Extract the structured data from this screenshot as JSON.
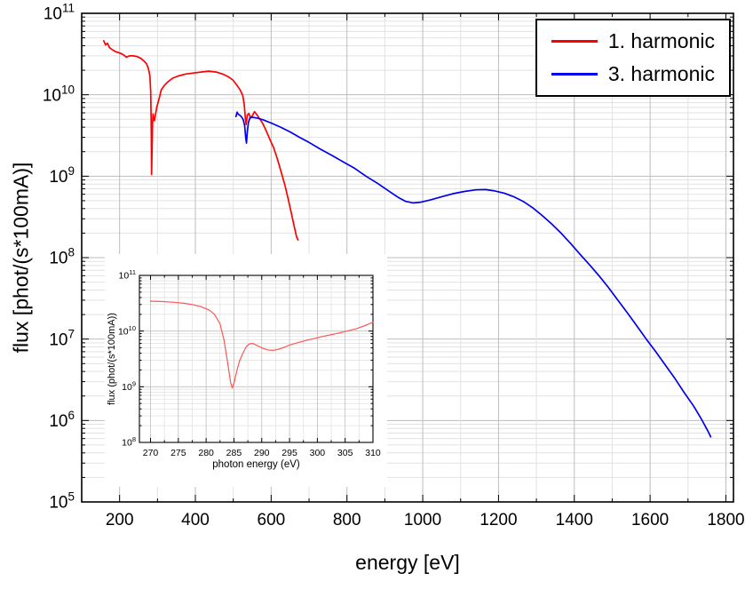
{
  "figure": {
    "background": "#ffffff"
  },
  "colors": {
    "harmonic1": "#ff0000",
    "harmonic3": "#0000ee",
    "inset_line": "#ff5555",
    "grid_major": "#bdbdbd",
    "grid_minor": "#e2e2e2",
    "axis": "#000000"
  },
  "legend": {
    "items": [
      {
        "label": "1. harmonic",
        "color_key": "harmonic1"
      },
      {
        "label": "3. harmonic",
        "color_key": "harmonic3"
      }
    ]
  },
  "chart_data": [
    {
      "id": "main",
      "type": "line",
      "title": "",
      "xlabel": "energy [eV]",
      "ylabel": "flux [phot/(s*100mA)]",
      "x_scale": "linear",
      "y_scale": "log",
      "xlim": [
        100,
        1820
      ],
      "ylim": [
        100000.0,
        100000000000.0
      ],
      "y_exp_range": [
        5,
        11
      ],
      "x_major_ticks": [
        200,
        400,
        600,
        800,
        1000,
        1200,
        1400,
        1600,
        1800
      ],
      "x_minor_step": 100,
      "grid": true,
      "legend_position": "top-right",
      "series": [
        {
          "name": "1. harmonic",
          "color": "#ff0000",
          "points": [
            [
              158,
              46000000000.0
            ],
            [
              163,
              41000000000.0
            ],
            [
              168,
              43000000000.0
            ],
            [
              173,
              38000000000.0
            ],
            [
              180,
              36000000000.0
            ],
            [
              188,
              34000000000.0
            ],
            [
              196,
              33000000000.0
            ],
            [
              205,
              32000000000.0
            ],
            [
              212,
              30500000000.0
            ],
            [
              218,
              29000000000.0
            ],
            [
              226,
              30000000000.0
            ],
            [
              236,
              30000000000.0
            ],
            [
              246,
              29500000000.0
            ],
            [
              256,
              28000000000.0
            ],
            [
              264,
              26000000000.0
            ],
            [
              271,
              24000000000.0
            ],
            [
              276,
              21000000000.0
            ],
            [
              280,
              17000000000.0
            ],
            [
              282,
              11000000000.0
            ],
            [
              283.5,
              4000000000.0
            ],
            [
              284.5,
              1050000000.0
            ],
            [
              285.5,
              2000000000.0
            ],
            [
              287,
              4500000000.0
            ],
            [
              288.5,
              5800000000.0
            ],
            [
              290,
              5000000000.0
            ],
            [
              292,
              4800000000.0
            ],
            [
              295,
              5800000000.0
            ],
            [
              298,
              7000000000.0
            ],
            [
              302,
              8200000000.0
            ],
            [
              306,
              9600000000.0
            ],
            [
              310,
              11500000000.0
            ],
            [
              318,
              13000000000.0
            ],
            [
              328,
              14500000000.0
            ],
            [
              340,
              16000000000.0
            ],
            [
              355,
              17000000000.0
            ],
            [
              375,
              18000000000.0
            ],
            [
              395,
              18500000000.0
            ],
            [
              415,
              19000000000.0
            ],
            [
              435,
              19500000000.0
            ],
            [
              455,
              19000000000.0
            ],
            [
              472,
              18000000000.0
            ],
            [
              488,
              16500000000.0
            ],
            [
              500,
              15000000000.0
            ],
            [
              510,
              13000000000.0
            ],
            [
              518,
              11500000000.0
            ],
            [
              525,
              9800000000.0
            ],
            [
              529,
              7500000000.0
            ],
            [
              532,
              5000000000.0
            ],
            [
              534,
              4300000000.0
            ],
            [
              537,
              5600000000.0
            ],
            [
              541,
              5900000000.0
            ],
            [
              546,
              5200000000.0
            ],
            [
              551,
              5600000000.0
            ],
            [
              556,
              6200000000.0
            ],
            [
              561,
              5800000000.0
            ],
            [
              568,
              5200000000.0
            ],
            [
              577,
              4500000000.0
            ],
            [
              587,
              3600000000.0
            ],
            [
              597,
              2800000000.0
            ],
            [
              607,
              2200000000.0
            ],
            [
              617,
              1600000000.0
            ],
            [
              627,
              1100000000.0
            ],
            [
              637,
              750000000.0
            ],
            [
              646,
              500000000.0
            ],
            [
              654,
              340000000.0
            ],
            [
              661,
              240000000.0
            ],
            [
              667,
              180000000.0
            ],
            [
              671,
              165000000.0
            ]
          ]
        },
        {
          "name": "3. harmonic",
          "color": "#0000ee",
          "points": [
            [
              507,
              5400000000.0
            ],
            [
              510,
              6100000000.0
            ],
            [
              513,
              5800000000.0
            ],
            [
              517,
              5600000000.0
            ],
            [
              521,
              5400000000.0
            ],
            [
              526,
              5000000000.0
            ],
            [
              530,
              4200000000.0
            ],
            [
              533,
              2900000000.0
            ],
            [
              535,
              2550000000.0
            ],
            [
              537,
              3500000000.0
            ],
            [
              540,
              4600000000.0
            ],
            [
              544,
              5200000000.0
            ],
            [
              549,
              5300000000.0
            ],
            [
              555,
              5250000000.0
            ],
            [
              565,
              5150000000.0
            ],
            [
              580,
              4900000000.0
            ],
            [
              600,
              4500000000.0
            ],
            [
              625,
              4000000000.0
            ],
            [
              650,
              3500000000.0
            ],
            [
              675,
              3000000000.0
            ],
            [
              700,
              2600000000.0
            ],
            [
              730,
              2150000000.0
            ],
            [
              760,
              1800000000.0
            ],
            [
              790,
              1500000000.0
            ],
            [
              820,
              1250000000.0
            ],
            [
              850,
              1000000000.0
            ],
            [
              880,
              820000000.0
            ],
            [
              910,
              660000000.0
            ],
            [
              935,
              550000000.0
            ],
            [
              955,
              490000000.0
            ],
            [
              975,
              470000000.0
            ],
            [
              995,
              480000000.0
            ],
            [
              1020,
              510000000.0
            ],
            [
              1050,
              560000000.0
            ],
            [
              1080,
              610000000.0
            ],
            [
              1110,
              650000000.0
            ],
            [
              1140,
              680000000.0
            ],
            [
              1165,
              685000000.0
            ],
            [
              1190,
              660000000.0
            ],
            [
              1215,
              620000000.0
            ],
            [
              1240,
              560000000.0
            ],
            [
              1265,
              490000000.0
            ],
            [
              1290,
              410000000.0
            ],
            [
              1315,
              330000000.0
            ],
            [
              1340,
              260000000.0
            ],
            [
              1365,
              200000000.0
            ],
            [
              1390,
              150000000.0
            ],
            [
              1415,
              110000000.0
            ],
            [
              1440,
              82000000.0
            ],
            [
              1465,
              60000000.0
            ],
            [
              1490,
              43000000.0
            ],
            [
              1515,
              30000000.0
            ],
            [
              1540,
              21000000.0
            ],
            [
              1565,
              14500000.0
            ],
            [
              1590,
              10000000.0
            ],
            [
              1615,
              7000000.0
            ],
            [
              1640,
              4800000.0
            ],
            [
              1665,
              3300000.0
            ],
            [
              1690,
              2200000.0
            ],
            [
              1715,
              1500000.0
            ],
            [
              1735,
              1050000.0
            ],
            [
              1752,
              750000.0
            ],
            [
              1760,
              630000.0
            ]
          ]
        }
      ]
    },
    {
      "id": "inset",
      "type": "line",
      "title": "",
      "xlabel": "photon energy (eV)",
      "ylabel": "flux (phot/(s*100mA))",
      "x_scale": "linear",
      "y_scale": "log",
      "xlim": [
        268,
        310
      ],
      "ylim": [
        100000000.0,
        100000000000.0
      ],
      "y_exp_range": [
        8,
        11
      ],
      "x_major_ticks": [
        270,
        275,
        280,
        285,
        290,
        295,
        300,
        305,
        310
      ],
      "x_minor_step": 2.5,
      "grid": true,
      "series": [
        {
          "color": "#ff5555",
          "points": [
            [
              270,
              34500000000.0
            ],
            [
              272,
              34000000000.0
            ],
            [
              274,
              33000000000.0
            ],
            [
              276,
              31500000000.0
            ],
            [
              277.5,
              30000000000.0
            ],
            [
              279,
              27500000000.0
            ],
            [
              280.5,
              24000000000.0
            ],
            [
              281.5,
              20000000000.0
            ],
            [
              282.5,
              13500000000.0
            ],
            [
              283.2,
              7000000000.0
            ],
            [
              283.8,
              3000000000.0
            ],
            [
              284.4,
              1200000000.0
            ],
            [
              284.7,
              950000000.0
            ],
            [
              285,
              1150000000.0
            ],
            [
              285.5,
              1900000000.0
            ],
            [
              286,
              2900000000.0
            ],
            [
              286.6,
              4000000000.0
            ],
            [
              287.2,
              5200000000.0
            ],
            [
              287.8,
              5900000000.0
            ],
            [
              288.4,
              6000000000.0
            ],
            [
              289,
              5600000000.0
            ],
            [
              290,
              5000000000.0
            ],
            [
              291,
              4600000000.0
            ],
            [
              292,
              4500000000.0
            ],
            [
              293,
              4700000000.0
            ],
            [
              294,
              5100000000.0
            ],
            [
              295,
              5600000000.0
            ],
            [
              296,
              6000000000.0
            ],
            [
              297,
              6400000000.0
            ],
            [
              298,
              6800000000.0
            ],
            [
              299.5,
              7400000000.0
            ],
            [
              301,
              8000000000.0
            ],
            [
              303,
              8800000000.0
            ],
            [
              305,
              9800000000.0
            ],
            [
              307,
              11000000000.0
            ],
            [
              309,
              13000000000.0
            ],
            [
              310,
              14500000000.0
            ]
          ]
        }
      ]
    }
  ]
}
